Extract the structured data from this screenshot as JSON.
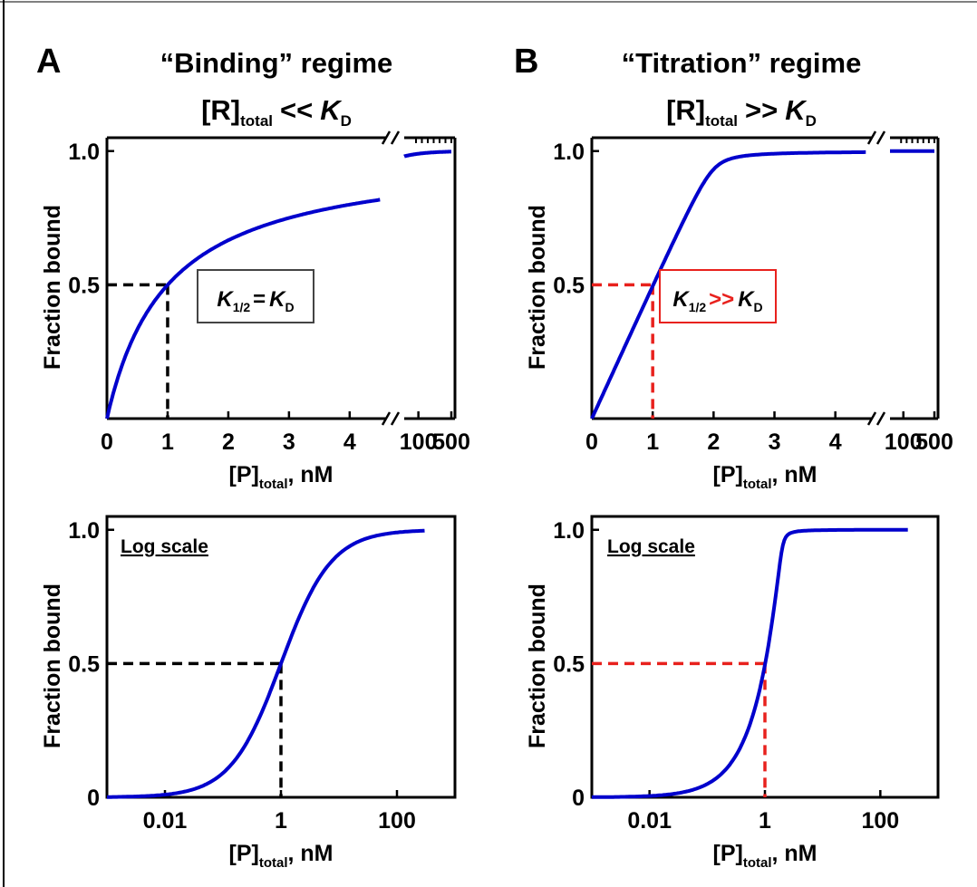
{
  "panels": [
    {
      "letter": "A",
      "title": "“Binding” regime",
      "cond": {
        "R": "[R]",
        "sub": "total",
        "rel": "<<",
        "K": "K",
        "Ksub": "D"
      },
      "box": {
        "K": "K",
        "Ksub": "1/2",
        "rel": "=",
        "K2": "K",
        "K2sub": "D"
      }
    },
    {
      "letter": "B",
      "title": "“Titration” regime",
      "cond": {
        "R": "[R]",
        "sub": "total",
        "rel": ">>",
        "K": "K",
        "Ksub": "D"
      },
      "box": {
        "K": "K",
        "Ksub": "1/2",
        "rel": ">>",
        "K2": "K",
        "K2sub": "D"
      }
    }
  ],
  "colors": {
    "curve": "#0000cc",
    "guide_binding": "#000000",
    "guide_titration": "#e8211d",
    "box_binding": "#444444",
    "box_titration": "#e8211d"
  },
  "log_note": "Log scale",
  "chart_data": [
    {
      "id": "A-linear",
      "type": "line",
      "xlabel": {
        "main": "[P]",
        "sub": "total",
        "tail": ", nM"
      },
      "ylabel": "Fraction bound",
      "xlim_linear": [
        0,
        4.6
      ],
      "xlim_break": [
        50,
        500
      ],
      "ylim": [
        0,
        1.05
      ],
      "xticks": [
        0,
        1,
        2,
        3,
        4
      ],
      "xticks_break": [
        100,
        500
      ],
      "yticks": [
        0.5,
        1.0
      ],
      "ytick_labels": [
        "0.5",
        "1.0"
      ],
      "x_break": true,
      "model": {
        "kd": 1,
        "r_total": 0.001
      },
      "series": [
        {
          "x": [
            0,
            0.25,
            0.5,
            1,
            2,
            3,
            4.5,
            50,
            100,
            500
          ],
          "y": [
            0,
            0.2,
            0.333,
            0.5,
            0.667,
            0.75,
            0.818,
            0.98,
            0.99,
            0.998
          ]
        }
      ],
      "guide": {
        "x": 1,
        "y": 0.5
      }
    },
    {
      "id": "B-linear",
      "type": "line",
      "xlabel": {
        "main": "[P]",
        "sub": "total",
        "tail": ", nM"
      },
      "ylabel": "Fraction bound",
      "xlim_linear": [
        0,
        4.6
      ],
      "xlim_break": [
        50,
        500
      ],
      "ylim": [
        0,
        1.05
      ],
      "xticks": [
        0,
        1,
        2,
        3,
        4
      ],
      "xticks_break": [
        100,
        500
      ],
      "yticks": [
        0.5,
        1.0
      ],
      "ytick_labels": [
        "0.5",
        "1.0"
      ],
      "x_break": true,
      "model": {
        "kd": 0.01,
        "r_total": 2
      },
      "series": [
        {
          "x": [
            0,
            0.5,
            1,
            1.5,
            1.9,
            2.2,
            3,
            4.5,
            100,
            500
          ],
          "y": [
            0,
            0.25,
            0.5,
            0.75,
            0.93,
            0.97,
            0.99,
            0.995,
            1.0,
            1.0
          ]
        }
      ],
      "guide": {
        "x": 1,
        "y": 0.5
      }
    },
    {
      "id": "A-log",
      "type": "line",
      "log_x": true,
      "xlabel": {
        "main": "[P]",
        "sub": "total",
        "tail": ", nM"
      },
      "ylabel": "Fraction bound",
      "xlim": [
        0.001,
        1000
      ],
      "ylim": [
        0,
        1.05
      ],
      "xticks": [
        0.01,
        1,
        100
      ],
      "xtick_labels": [
        "0.01",
        "1",
        "100"
      ],
      "yticks": [
        0,
        0.5,
        1.0
      ],
      "ytick_labels": [
        "0",
        "0.5",
        "1.0"
      ],
      "model": {
        "kd": 1,
        "r_total": 0.001
      },
      "series": [
        {
          "x": [
            0.001,
            0.01,
            0.1,
            1,
            10,
            100,
            1000
          ],
          "y": [
            0.001,
            0.01,
            0.091,
            0.5,
            0.909,
            0.99,
            0.999
          ]
        }
      ],
      "guide": {
        "x": 1,
        "y": 0.5
      }
    },
    {
      "id": "B-log",
      "type": "line",
      "log_x": true,
      "xlabel": {
        "main": "[P]",
        "sub": "total",
        "tail": ", nM"
      },
      "ylabel": "Fraction bound",
      "xlim": [
        0.001,
        1000
      ],
      "ylim": [
        0,
        1.05
      ],
      "xticks": [
        0.01,
        1,
        100
      ],
      "xtick_labels": [
        "0.01",
        "1",
        "100"
      ],
      "yticks": [
        0,
        0.5,
        1.0
      ],
      "ytick_labels": [
        "0",
        "0.5",
        "1.0"
      ],
      "model": {
        "kd": 0.01,
        "r_total": 2
      },
      "series": [
        {
          "x": [
            0.001,
            0.1,
            0.5,
            1,
            1.5,
            2,
            10,
            1000
          ],
          "y": [
            0.0005,
            0.05,
            0.25,
            0.5,
            0.75,
            0.93,
            0.999,
            1.0
          ]
        }
      ],
      "guide": {
        "x": 1,
        "y": 0.5
      }
    }
  ]
}
